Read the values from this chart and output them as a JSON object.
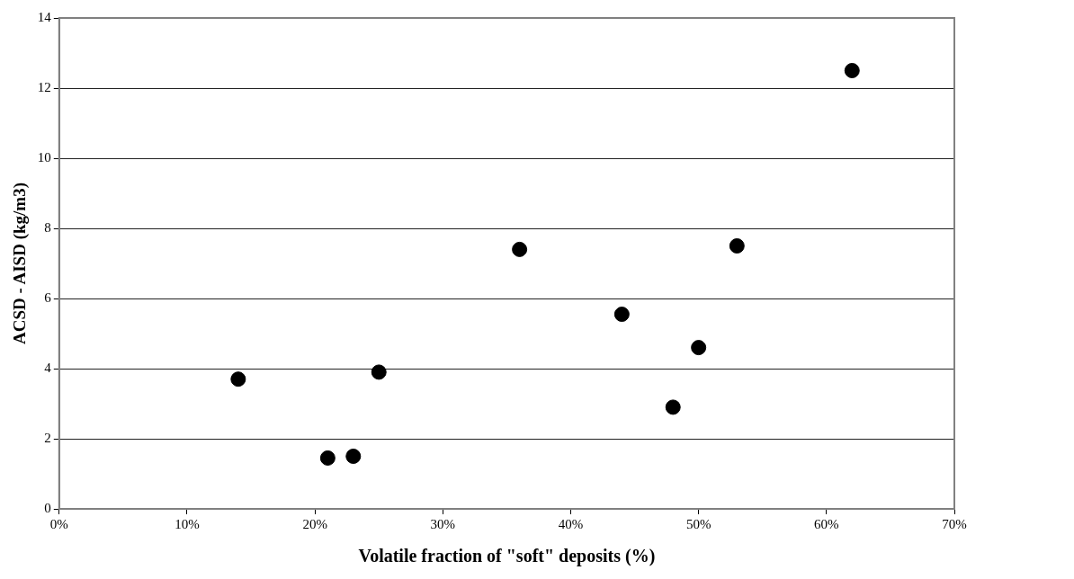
{
  "chart_data": {
    "type": "scatter",
    "xlabel": "Volatile fraction of \"soft\" deposits (%)",
    "ylabel": "ACSD - AISD (kg/m3)",
    "x": [
      14,
      21,
      23,
      25,
      36,
      44,
      48,
      50,
      53,
      62
    ],
    "series": [
      {
        "color": "#000000",
        "values": [
          3.7,
          1.45,
          1.5,
          3.9,
          7.4,
          5.55,
          2.9,
          4.6,
          7.5,
          12.5
        ]
      }
    ],
    "xlim": [
      0,
      70
    ],
    "xticks": [
      {
        "value": 0,
        "label": "0%"
      },
      {
        "value": 10,
        "label": "10%"
      },
      {
        "value": 20,
        "label": "20%"
      },
      {
        "value": 30,
        "label": "30%"
      },
      {
        "value": 40,
        "label": "40%"
      },
      {
        "value": 50,
        "label": "50%"
      },
      {
        "value": 60,
        "label": "60%"
      },
      {
        "value": 70,
        "label": "70%"
      }
    ],
    "ylim": [
      0,
      14
    ],
    "yticks": [
      0,
      2,
      4,
      6,
      8,
      10,
      12,
      14
    ],
    "grid": "y",
    "legend": false,
    "marker": "circle"
  }
}
